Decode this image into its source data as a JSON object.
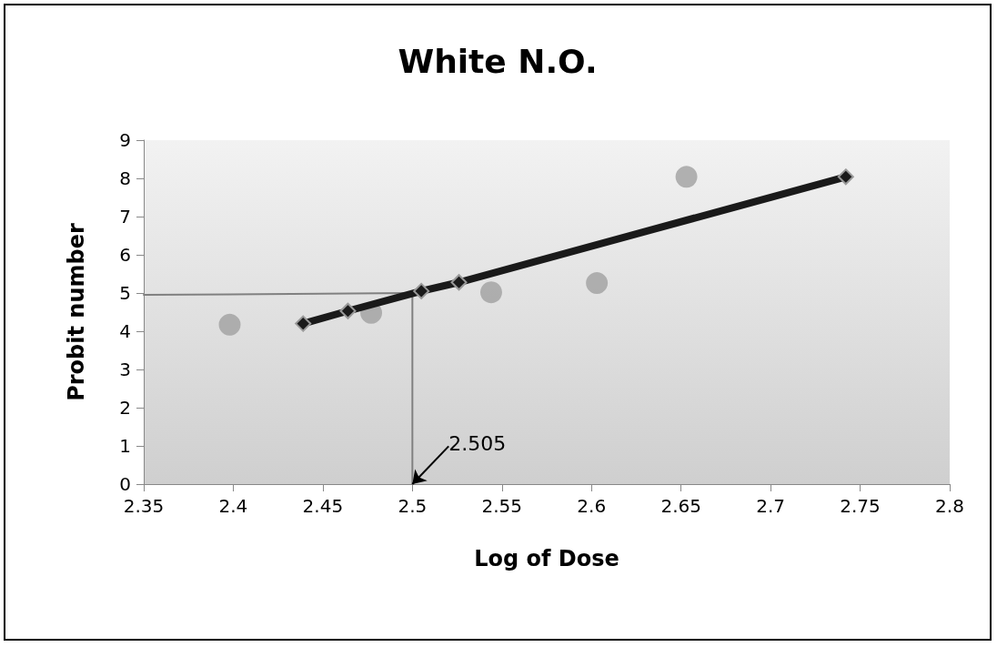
{
  "chart_data": {
    "type": "scatter",
    "title": "White N.O.",
    "xlabel": "Log of Dose",
    "ylabel": "Probit number",
    "xlim": [
      2.35,
      2.8
    ],
    "xticks": [
      2.35,
      2.4,
      2.45,
      2.5,
      2.55,
      2.6,
      2.65,
      2.7,
      2.75,
      2.8
    ],
    "ylim": [
      0,
      9
    ],
    "yticks": [
      0,
      1,
      2,
      3,
      4,
      5,
      6,
      7,
      8,
      9
    ],
    "grid": false,
    "series": [
      {
        "marker": "circle",
        "color": "#a0a0a0",
        "x": [
          2.398,
          2.477,
          2.544,
          2.603,
          2.653
        ],
        "values": [
          4.17,
          4.48,
          5.02,
          5.26,
          8.04
        ]
      },
      {
        "type": "line",
        "marker": "diamond",
        "color": "#1a1a1a",
        "x": [
          2.439,
          2.464,
          2.505,
          2.526,
          2.742
        ],
        "values": [
          4.2,
          4.53,
          5.05,
          5.28,
          8.04
        ]
      },
      {
        "type": "line",
        "marker": "none",
        "color": "#808080",
        "x": [
          2.35,
          2.5,
          2.5
        ],
        "values": [
          4.95,
          5,
          0
        ]
      }
    ],
    "annotations": [
      {
        "text": "2.505",
        "x": 2.5,
        "y": 0
      }
    ]
  }
}
